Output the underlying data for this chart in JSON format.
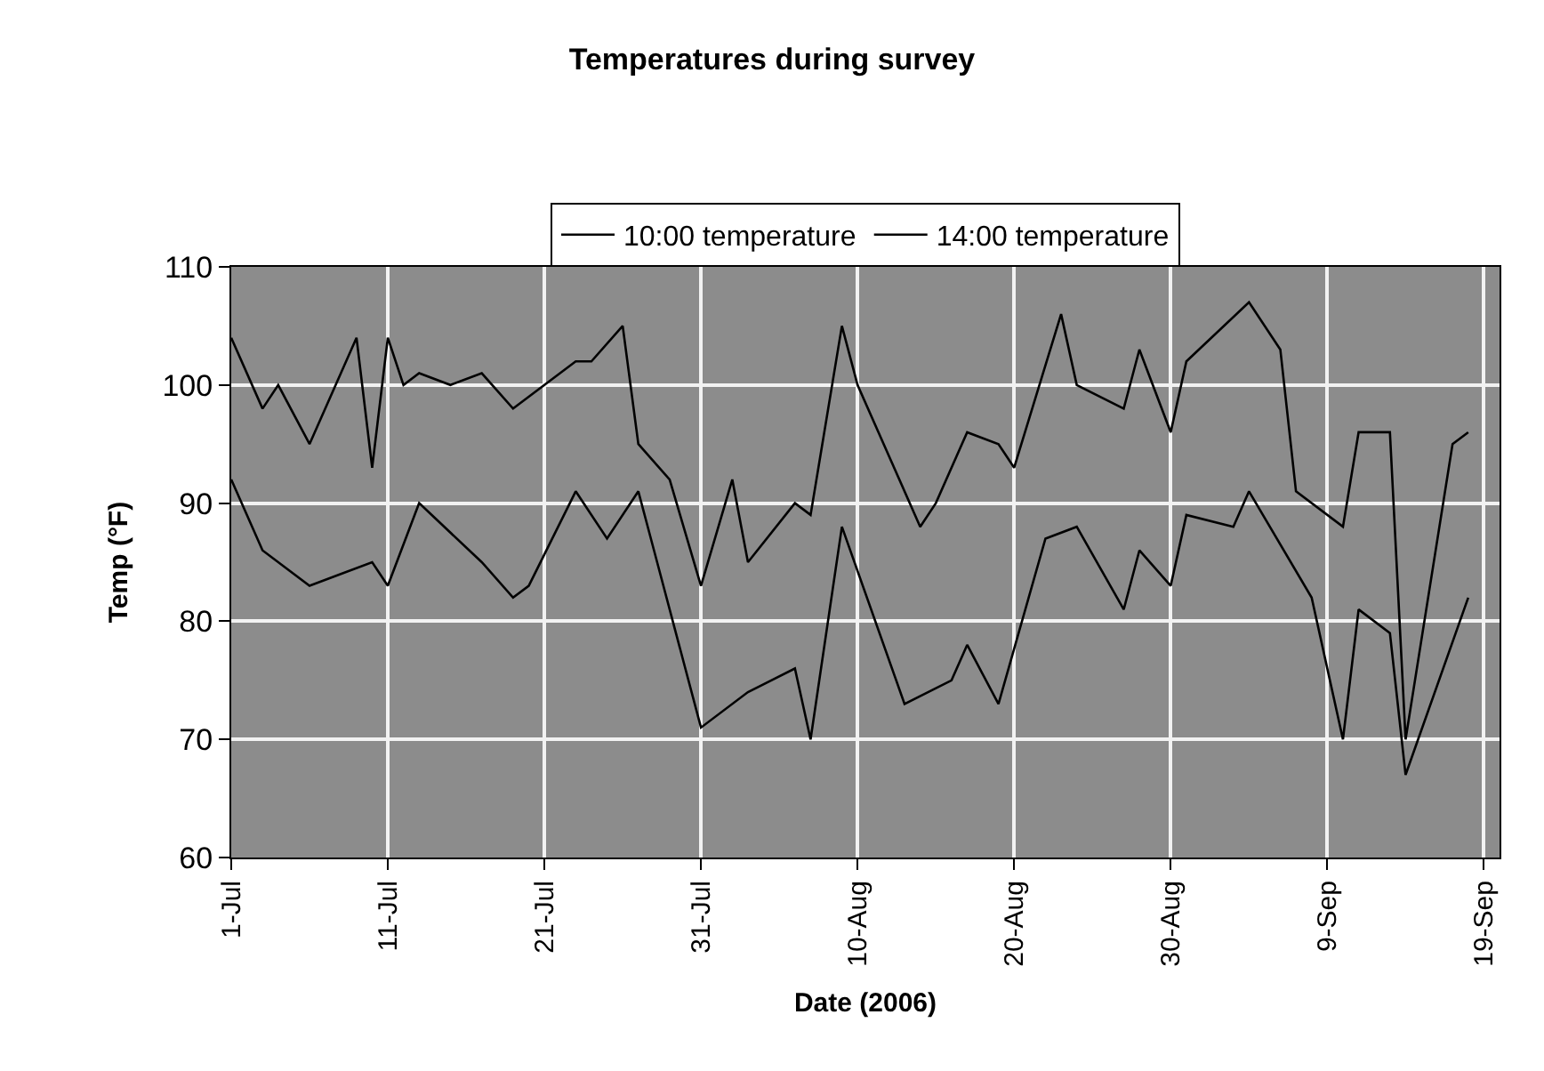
{
  "chart_data": {
    "type": "line",
    "title": "Temperatures during survey",
    "xlabel": "Date (2006)",
    "ylabel": "Temp (°F)",
    "xlim": [
      "2006-07-01",
      "2006-09-20"
    ],
    "xticks": [
      {
        "value": "2006-07-01",
        "label": "1-Jul"
      },
      {
        "value": "2006-07-11",
        "label": "11-Jul"
      },
      {
        "value": "2006-07-21",
        "label": "21-Jul"
      },
      {
        "value": "2006-07-31",
        "label": "31-Jul"
      },
      {
        "value": "2006-08-10",
        "label": "10-Aug"
      },
      {
        "value": "2006-08-20",
        "label": "20-Aug"
      },
      {
        "value": "2006-08-30",
        "label": "30-Aug"
      },
      {
        "value": "2006-09-09",
        "label": "9-Sep"
      },
      {
        "value": "2006-09-19",
        "label": "19-Sep"
      }
    ],
    "ylim": [
      60,
      110
    ],
    "yticks": [
      60,
      70,
      80,
      90,
      100,
      110
    ],
    "grid": true,
    "legend": "top",
    "series": [
      {
        "name": "10:00 temperature",
        "color": "#000000",
        "x": [
          "2006-07-01",
          "2006-07-03",
          "2006-07-06",
          "2006-07-08",
          "2006-07-10",
          "2006-07-11",
          "2006-07-13",
          "2006-07-17",
          "2006-07-19",
          "2006-07-20",
          "2006-07-23",
          "2006-07-25",
          "2006-07-27",
          "2006-07-28",
          "2006-07-31",
          "2006-08-03",
          "2006-08-06",
          "2006-08-07",
          "2006-08-09",
          "2006-08-13",
          "2006-08-16",
          "2006-08-17",
          "2006-08-19",
          "2006-08-22",
          "2006-08-24",
          "2006-08-27",
          "2006-08-28",
          "2006-08-30",
          "2006-08-31",
          "2006-09-03",
          "2006-09-04",
          "2006-09-08",
          "2006-09-10",
          "2006-09-11",
          "2006-09-13",
          "2006-09-14",
          "2006-09-18"
        ],
        "values": [
          92,
          86,
          83,
          84,
          85,
          83,
          90,
          85,
          82,
          83,
          91,
          87,
          91,
          86,
          71,
          74,
          76,
          70,
          88,
          73,
          75,
          78,
          73,
          87,
          88,
          81,
          86,
          83,
          89,
          88,
          91,
          82,
          70,
          81,
          79,
          67,
          82
        ]
      },
      {
        "name": "14:00 temperature",
        "color": "#000000",
        "x": [
          "2006-07-01",
          "2006-07-03",
          "2006-07-04",
          "2006-07-06",
          "2006-07-09",
          "2006-07-10",
          "2006-07-11",
          "2006-07-12",
          "2006-07-13",
          "2006-07-15",
          "2006-07-17",
          "2006-07-19",
          "2006-07-21",
          "2006-07-23",
          "2006-07-24",
          "2006-07-26",
          "2006-07-27",
          "2006-07-29",
          "2006-07-31",
          "2006-08-02",
          "2006-08-03",
          "2006-08-06",
          "2006-08-07",
          "2006-08-09",
          "2006-08-10",
          "2006-08-14",
          "2006-08-15",
          "2006-08-17",
          "2006-08-19",
          "2006-08-20",
          "2006-08-23",
          "2006-08-24",
          "2006-08-27",
          "2006-08-28",
          "2006-08-30",
          "2006-08-31",
          "2006-09-04",
          "2006-09-06",
          "2006-09-07",
          "2006-09-10",
          "2006-09-11",
          "2006-09-13",
          "2006-09-14",
          "2006-09-17",
          "2006-09-18"
        ],
        "values": [
          104,
          98,
          100,
          95,
          104,
          93,
          104,
          100,
          101,
          100,
          101,
          98,
          100,
          102,
          102,
          105,
          95,
          92,
          83,
          92,
          85,
          90,
          89,
          105,
          100,
          88,
          90,
          96,
          95,
          93,
          106,
          100,
          98,
          103,
          96,
          102,
          107,
          103,
          91,
          88,
          96,
          96,
          70,
          95,
          96
        ]
      }
    ]
  }
}
